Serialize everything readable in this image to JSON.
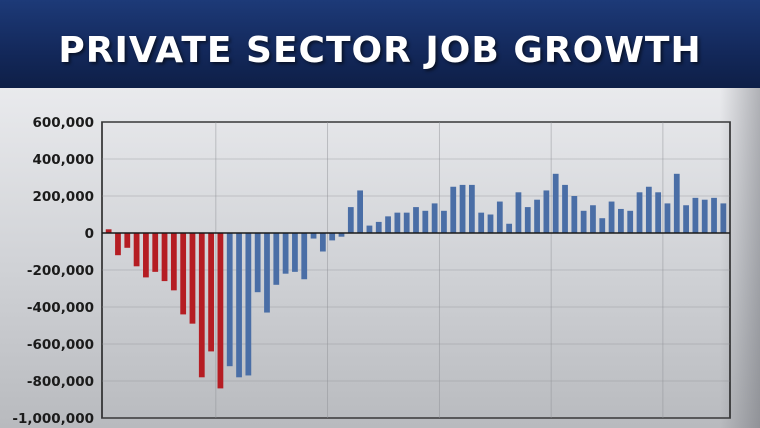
{
  "title": "PRIVATE SECTOR JOB GROWTH",
  "colors": {
    "loss_bar": "#b51d23",
    "recovery_bar": "#4a6ea6",
    "grid": "#8f9196",
    "axis": "#1a1a1a"
  },
  "chart_data": {
    "type": "bar",
    "title": "PRIVATE SECTOR JOB GROWTH",
    "xlabel": "",
    "ylabel": "",
    "ylim": [
      -1000000,
      600000
    ],
    "y_ticks": [
      600000,
      400000,
      200000,
      0,
      -200000,
      -400000,
      -600000,
      -800000,
      -1000000
    ],
    "y_tick_labels": [
      "600,000",
      "400,000",
      "200,000",
      "0",
      "-200,000",
      "-400,000",
      "-600,000",
      "-800,000",
      "-1,000,000"
    ],
    "grid": true,
    "series": [
      {
        "color": "#b51d23",
        "values": [
          20000,
          -120000,
          -80000,
          -180000,
          -240000,
          -210000,
          -260000,
          -310000,
          -440000,
          -490000,
          -780000,
          -640000,
          -840000
        ]
      },
      {
        "color": "#4a6ea6",
        "values": [
          -720000,
          -780000,
          -770000,
          -320000,
          -430000,
          -280000,
          -220000,
          -210000,
          -250000,
          -30000,
          -100000,
          -40000,
          -20000,
          140000,
          230000,
          40000,
          60000,
          90000,
          110000,
          110000,
          140000,
          120000,
          160000,
          120000,
          250000,
          260000,
          260000,
          110000,
          100000,
          170000,
          50000,
          220000,
          140000,
          180000,
          230000,
          320000,
          260000,
          200000,
          120000,
          150000,
          80000,
          170000,
          130000,
          120000,
          220000,
          250000,
          220000,
          160000,
          320000,
          150000,
          190000,
          180000,
          190000,
          160000
        ]
      }
    ]
  }
}
